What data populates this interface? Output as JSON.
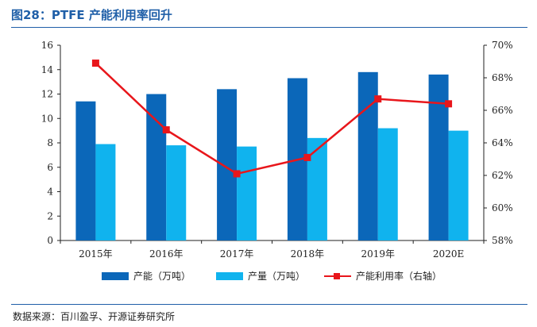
{
  "figure": {
    "title": "图28：PTFE 产能利用率回升",
    "source": "数据来源：百川盈孚、开源证券研究所"
  },
  "colors": {
    "capacity": "#0b67b9",
    "output": "#10b3ee",
    "utilization": "#e8161b",
    "accent": "#1f5fa8"
  },
  "chart_data": {
    "type": "bar",
    "categories": [
      "2015年",
      "2016年",
      "2017年",
      "2018年",
      "2019年",
      "2020E"
    ],
    "series": [
      {
        "name": "产能（万吨）",
        "type": "bar",
        "axis": "left",
        "values": [
          11.4,
          12.0,
          12.4,
          13.3,
          13.8,
          13.6
        ]
      },
      {
        "name": "产量（万吨）",
        "type": "bar",
        "axis": "left",
        "values": [
          7.9,
          7.8,
          7.7,
          8.4,
          9.2,
          9.0
        ]
      },
      {
        "name": "产能利用率（右轴）",
        "type": "line",
        "axis": "right",
        "values": [
          68.9,
          64.8,
          62.1,
          63.1,
          66.7,
          66.4
        ]
      }
    ],
    "y_left": {
      "min": 0,
      "max": 16,
      "ticks": [
        "0",
        "2",
        "4",
        "6",
        "8",
        "10",
        "12",
        "14",
        "16"
      ]
    },
    "y_right": {
      "min": 58,
      "max": 70,
      "ticks": [
        "58%",
        "60%",
        "62%",
        "64%",
        "66%",
        "68%",
        "70%"
      ]
    },
    "legend_position": "bottom"
  }
}
